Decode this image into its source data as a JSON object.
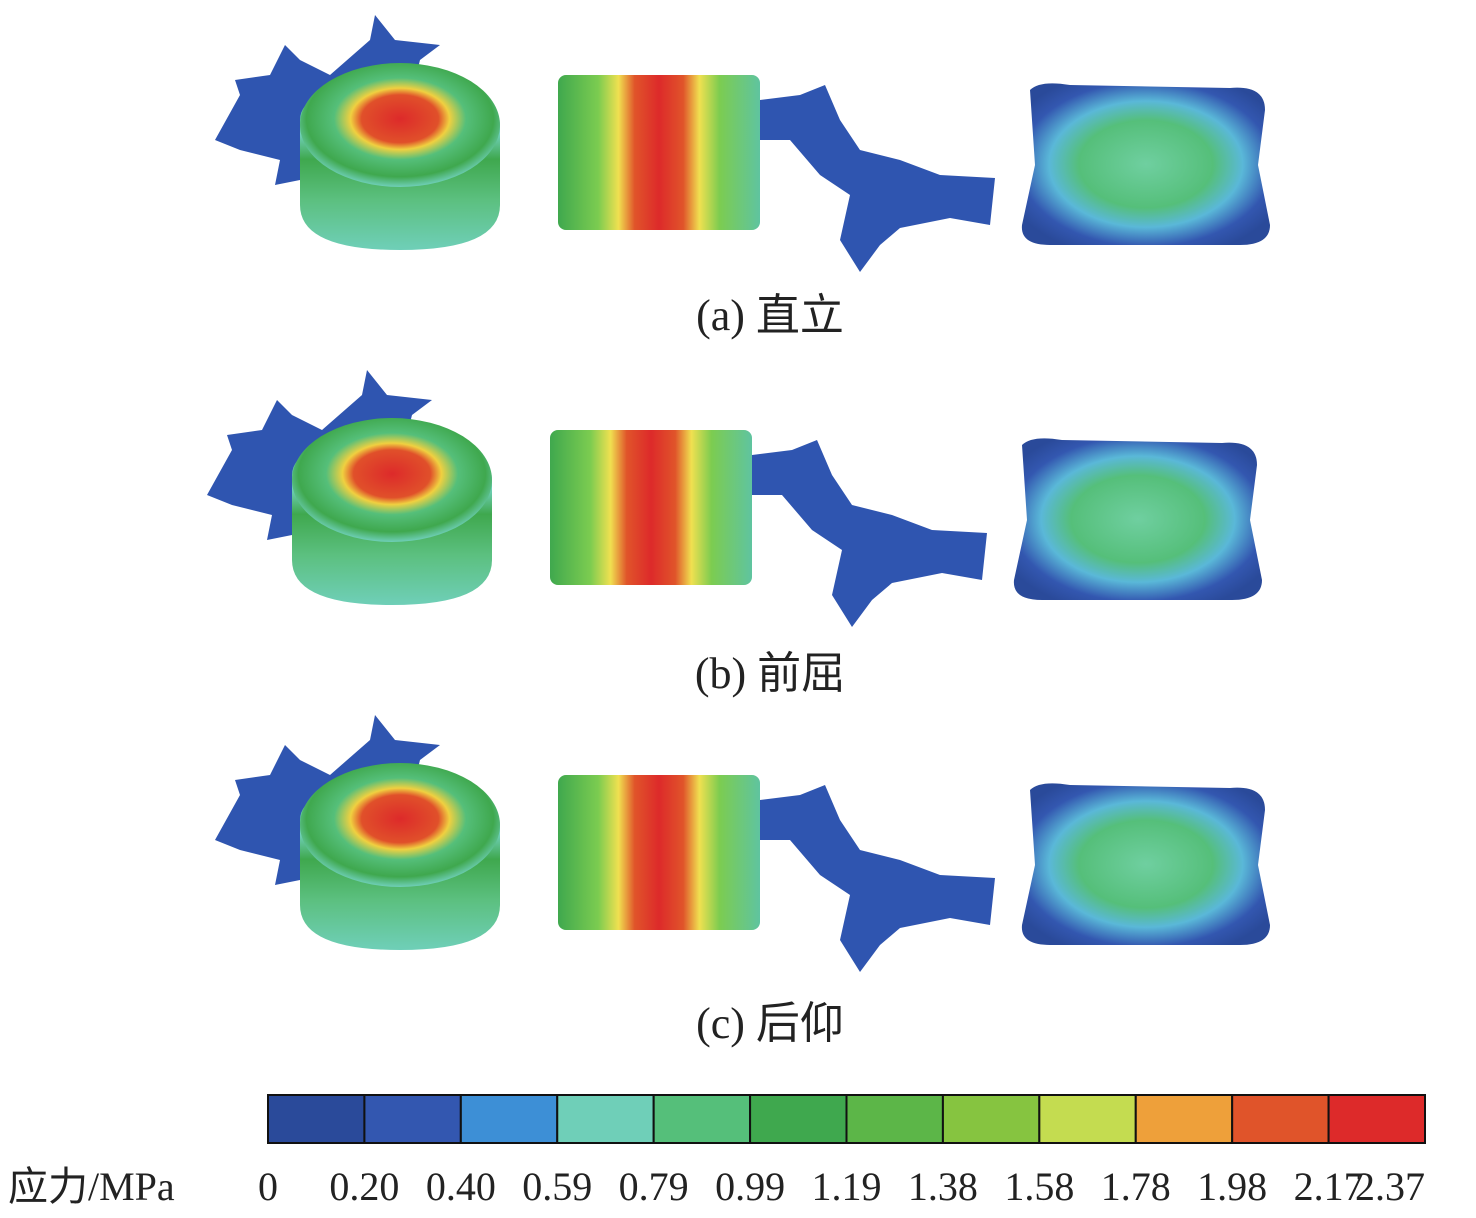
{
  "panels": [
    {
      "caption": "(a) 直立"
    },
    {
      "caption": "(b) 前屈"
    },
    {
      "caption": "(c) 后仰"
    }
  ],
  "colorbar": {
    "label": "应力/MPa",
    "colors": [
      "#2a4a9a",
      "#3357b0",
      "#3d8fd6",
      "#6fcfb8",
      "#55bf7a",
      "#3fa84e",
      "#5cb648",
      "#86c440",
      "#c4dc50",
      "#eea03a",
      "#e0542a",
      "#dd2a2a"
    ],
    "ticks": [
      "0",
      "0.20",
      "0.40",
      "0.59",
      "0.79",
      "0.99",
      "1.19",
      "1.38",
      "1.58",
      "1.78",
      "1.98",
      "2.17",
      "2.37"
    ]
  }
}
